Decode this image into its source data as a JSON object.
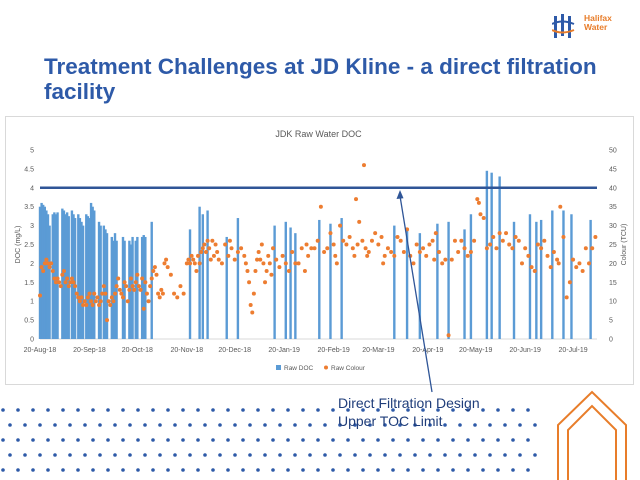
{
  "slide": {
    "title": "Treatment Challenges at JD Kline - a direct filtration facility",
    "callout_line1": "Direct Filtration Design",
    "callout_line2": "Upper TOC Limit"
  },
  "logo": {
    "line1": "Halifax",
    "line2": "Water"
  },
  "colors": {
    "title": "#2e5aa8",
    "bar": "#5b9bd5",
    "dot": "#ed7d31",
    "limit_line": "#2f5597",
    "callout_text": "#1f3d7a",
    "dot_pattern": "#2e5aa8",
    "house_outline": "#e87d2a"
  },
  "chart_data": {
    "type": "bar+scatter",
    "title": "JDK Raw Water DOC",
    "ylabel_left": "DOC (mg/L)",
    "ylabel_right": "Colour (TCU)",
    "ylim_left": [
      0,
      5
    ],
    "ylim_right": [
      0,
      50
    ],
    "yticks_left": [
      "0",
      "0.5",
      "1",
      "1.5",
      "2",
      "2.5",
      "3",
      "3.5",
      "4",
      "4.5",
      "5"
    ],
    "yticks_right": [
      "0",
      "5",
      "10",
      "15",
      "20",
      "25",
      "30",
      "35",
      "40",
      "45",
      "50"
    ],
    "x_tick_labels": [
      "20-Aug-18",
      "20-Sep-18",
      "20-Oct-18",
      "20-Nov-18",
      "20-Dec-18",
      "20-Jan-19",
      "20-Feb-19",
      "20-Mar-19",
      "20-Apr-19",
      "20-May-19",
      "20-Jun-19",
      "20-Jul-19"
    ],
    "x_ticks_day": [
      0,
      31,
      61,
      92,
      122,
      153,
      184,
      212,
      243,
      273,
      304,
      334
    ],
    "x_range_day": [
      0,
      349
    ],
    "legend": [
      "Raw DOC",
      "Raw Colour"
    ],
    "legend_position": "bottom",
    "limit_line": {
      "axis": "left",
      "value": 4.0
    },
    "doc_bars": [
      [
        0,
        3.5
      ],
      [
        1,
        3.6
      ],
      [
        2,
        3.55
      ],
      [
        3,
        3.5
      ],
      [
        4,
        3.4
      ],
      [
        5,
        3.3
      ],
      [
        6,
        3.0
      ],
      [
        8,
        3.3
      ],
      [
        9,
        3.35
      ],
      [
        10,
        3.3
      ],
      [
        11,
        3.35
      ],
      [
        14,
        3.45
      ],
      [
        15,
        3.4
      ],
      [
        16,
        3.3
      ],
      [
        17,
        3.35
      ],
      [
        18,
        3.25
      ],
      [
        20,
        3.4
      ],
      [
        21,
        3.3
      ],
      [
        22,
        3.2
      ],
      [
        24,
        3.3
      ],
      [
        25,
        3.2
      ],
      [
        26,
        3.1
      ],
      [
        27,
        3.0
      ],
      [
        29,
        3.3
      ],
      [
        30,
        3.25
      ],
      [
        31,
        3.2
      ],
      [
        32,
        3.6
      ],
      [
        33,
        3.5
      ],
      [
        34,
        3.4
      ],
      [
        37,
        3.1
      ],
      [
        38,
        3.0
      ],
      [
        40,
        3.0
      ],
      [
        41,
        2.9
      ],
      [
        42,
        2.8
      ],
      [
        45,
        2.7
      ],
      [
        46,
        2.6
      ],
      [
        47,
        2.8
      ],
      [
        48,
        2.6
      ],
      [
        52,
        2.7
      ],
      [
        53,
        2.6
      ],
      [
        56,
        2.6
      ],
      [
        57,
        2.5
      ],
      [
        58,
        2.7
      ],
      [
        60,
        2.6
      ],
      [
        61,
        2.7
      ],
      [
        64,
        2.7
      ],
      [
        65,
        2.75
      ],
      [
        66,
        2.7
      ],
      [
        70,
        3.1
      ],
      [
        94,
        2.9
      ],
      [
        100,
        3.5
      ],
      [
        102,
        3.3
      ],
      [
        105,
        3.4
      ],
      [
        117,
        2.7
      ],
      [
        124,
        3.2
      ],
      [
        147,
        3.0
      ],
      [
        154,
        3.1
      ],
      [
        157,
        2.95
      ],
      [
        160,
        2.8
      ],
      [
        175,
        3.15
      ],
      [
        182,
        3.05
      ],
      [
        189,
        3.2
      ],
      [
        222,
        3.0
      ],
      [
        230,
        2.9
      ],
      [
        238,
        2.8
      ],
      [
        249,
        3.05
      ],
      [
        256,
        3.1
      ],
      [
        266,
        2.9
      ],
      [
        270,
        3.3
      ],
      [
        280,
        4.45
      ],
      [
        283,
        4.4
      ],
      [
        288,
        4.3
      ],
      [
        297,
        3.1
      ],
      [
        307,
        3.3
      ],
      [
        311,
        3.1
      ],
      [
        314,
        3.15
      ],
      [
        321,
        3.4
      ],
      [
        328,
        3.4
      ],
      [
        333,
        3.3
      ],
      [
        345,
        3.15
      ]
    ],
    "colour_points": [
      [
        0,
        11.5
      ],
      [
        1,
        19
      ],
      [
        2,
        18
      ],
      [
        3,
        20
      ],
      [
        4,
        21
      ],
      [
        5,
        20
      ],
      [
        6,
        19
      ],
      [
        7,
        20
      ],
      [
        8,
        18
      ],
      [
        9,
        16
      ],
      [
        10,
        15
      ],
      [
        11,
        16
      ],
      [
        12,
        15
      ],
      [
        13,
        14
      ],
      [
        14,
        17
      ],
      [
        15,
        18
      ],
      [
        16,
        15
      ],
      [
        17,
        16
      ],
      [
        18,
        14
      ],
      [
        19,
        15
      ],
      [
        20,
        16
      ],
      [
        21,
        15
      ],
      [
        22,
        14
      ],
      [
        23,
        12
      ],
      [
        24,
        11
      ],
      [
        25,
        10
      ],
      [
        26,
        11
      ],
      [
        27,
        9
      ],
      [
        28,
        10
      ],
      [
        29,
        9
      ],
      [
        30,
        11
      ],
      [
        31,
        12
      ],
      [
        32,
        10
      ],
      [
        33,
        9
      ],
      [
        34,
        12
      ],
      [
        35,
        10
      ],
      [
        36,
        11
      ],
      [
        37,
        9
      ],
      [
        38,
        10
      ],
      [
        39,
        12
      ],
      [
        40,
        14
      ],
      [
        41,
        12
      ],
      [
        42,
        5
      ],
      [
        43,
        10
      ],
      [
        44,
        9
      ],
      [
        45,
        11
      ],
      [
        46,
        10
      ],
      [
        47,
        12
      ],
      [
        48,
        14
      ],
      [
        49,
        16
      ],
      [
        50,
        13
      ],
      [
        51,
        12
      ],
      [
        52,
        11
      ],
      [
        53,
        15
      ],
      [
        54,
        14
      ],
      [
        55,
        10
      ],
      [
        56,
        13
      ],
      [
        57,
        16
      ],
      [
        58,
        14
      ],
      [
        59,
        13
      ],
      [
        60,
        15
      ],
      [
        61,
        17
      ],
      [
        62,
        14
      ],
      [
        63,
        13
      ],
      [
        64,
        16
      ],
      [
        65,
        8
      ],
      [
        66,
        15
      ],
      [
        67,
        12
      ],
      [
        68,
        10
      ],
      [
        69,
        14
      ],
      [
        70,
        16
      ],
      [
        71,
        18
      ],
      [
        72,
        19
      ],
      [
        73,
        17
      ],
      [
        74,
        12
      ],
      [
        75,
        11
      ],
      [
        76,
        13
      ],
      [
        77,
        12
      ],
      [
        78,
        20
      ],
      [
        79,
        21
      ],
      [
        80,
        19
      ],
      [
        82,
        17
      ],
      [
        84,
        12
      ],
      [
        86,
        11
      ],
      [
        88,
        14
      ],
      [
        90,
        12
      ],
      [
        92,
        20
      ],
      [
        93,
        21
      ],
      [
        94,
        20
      ],
      [
        95,
        22
      ],
      [
        96,
        21
      ],
      [
        97,
        20
      ],
      [
        98,
        18
      ],
      [
        99,
        22
      ],
      [
        100,
        20
      ],
      [
        101,
        23
      ],
      [
        102,
        24
      ],
      [
        103,
        25
      ],
      [
        104,
        23
      ],
      [
        105,
        26
      ],
      [
        106,
        24
      ],
      [
        107,
        21
      ],
      [
        108,
        26
      ],
      [
        109,
        22
      ],
      [
        110,
        25
      ],
      [
        111,
        23
      ],
      [
        112,
        21
      ],
      [
        114,
        20
      ],
      [
        116,
        25
      ],
      [
        118,
        22
      ],
      [
        119,
        26
      ],
      [
        120,
        24
      ],
      [
        122,
        21
      ],
      [
        124,
        23
      ],
      [
        126,
        24
      ],
      [
        128,
        22
      ],
      [
        129,
        20
      ],
      [
        130,
        18
      ],
      [
        131,
        15
      ],
      [
        132,
        9
      ],
      [
        133,
        7
      ],
      [
        134,
        12
      ],
      [
        135,
        18
      ],
      [
        136,
        21
      ],
      [
        137,
        23
      ],
      [
        138,
        21
      ],
      [
        139,
        25
      ],
      [
        140,
        20
      ],
      [
        141,
        15
      ],
      [
        142,
        18
      ],
      [
        143,
        22
      ],
      [
        144,
        20
      ],
      [
        145,
        17
      ],
      [
        146,
        24
      ],
      [
        148,
        21
      ],
      [
        150,
        19
      ],
      [
        152,
        22
      ],
      [
        154,
        20
      ],
      [
        156,
        18
      ],
      [
        158,
        23
      ],
      [
        160,
        20
      ],
      [
        162,
        20
      ],
      [
        164,
        24
      ],
      [
        166,
        18
      ],
      [
        167,
        25
      ],
      [
        168,
        22
      ],
      [
        170,
        24
      ],
      [
        172,
        24
      ],
      [
        174,
        26
      ],
      [
        176,
        35
      ],
      [
        178,
        23
      ],
      [
        180,
        24
      ],
      [
        182,
        28
      ],
      [
        184,
        25
      ],
      [
        185,
        22
      ],
      [
        186,
        20
      ],
      [
        188,
        30
      ],
      [
        190,
        26
      ],
      [
        192,
        25
      ],
      [
        194,
        27
      ],
      [
        196,
        24
      ],
      [
        197,
        22
      ],
      [
        198,
        37
      ],
      [
        199,
        25
      ],
      [
        200,
        31
      ],
      [
        202,
        26
      ],
      [
        203,
        46
      ],
      [
        204,
        24
      ],
      [
        205,
        22
      ],
      [
        206,
        23
      ],
      [
        208,
        26
      ],
      [
        210,
        28
      ],
      [
        212,
        25
      ],
      [
        214,
        27
      ],
      [
        215,
        20
      ],
      [
        216,
        22
      ],
      [
        218,
        24
      ],
      [
        220,
        23
      ],
      [
        222,
        22
      ],
      [
        224,
        27
      ],
      [
        226,
        26
      ],
      [
        228,
        23
      ],
      [
        230,
        29
      ],
      [
        232,
        22
      ],
      [
        234,
        20
      ],
      [
        236,
        25
      ],
      [
        238,
        23
      ],
      [
        240,
        24
      ],
      [
        242,
        22
      ],
      [
        244,
        25
      ],
      [
        246,
        26
      ],
      [
        247,
        21
      ],
      [
        248,
        28
      ],
      [
        250,
        23
      ],
      [
        252,
        20
      ],
      [
        254,
        21
      ],
      [
        256,
        1
      ],
      [
        258,
        21
      ],
      [
        260,
        26
      ],
      [
        262,
        23
      ],
      [
        264,
        26
      ],
      [
        266,
        24
      ],
      [
        268,
        22
      ],
      [
        270,
        23
      ],
      [
        272,
        26
      ],
      [
        274,
        37
      ],
      [
        275,
        36
      ],
      [
        276,
        33
      ],
      [
        278,
        32
      ],
      [
        280,
        24
      ],
      [
        282,
        25
      ],
      [
        284,
        27
      ],
      [
        286,
        24
      ],
      [
        288,
        28
      ],
      [
        290,
        26
      ],
      [
        292,
        28
      ],
      [
        294,
        25
      ],
      [
        296,
        24
      ],
      [
        298,
        27
      ],
      [
        300,
        26
      ],
      [
        302,
        20
      ],
      [
        304,
        24
      ],
      [
        306,
        22
      ],
      [
        308,
        19
      ],
      [
        310,
        18
      ],
      [
        312,
        25
      ],
      [
        314,
        24
      ],
      [
        316,
        26
      ],
      [
        318,
        22
      ],
      [
        320,
        19
      ],
      [
        322,
        23
      ],
      [
        324,
        21
      ],
      [
        325,
        20
      ],
      [
        326,
        35
      ],
      [
        328,
        27
      ],
      [
        330,
        11
      ],
      [
        332,
        15
      ],
      [
        334,
        21
      ],
      [
        336,
        19
      ],
      [
        338,
        20
      ],
      [
        340,
        18
      ],
      [
        342,
        24
      ],
      [
        344,
        20
      ],
      [
        346,
        24
      ],
      [
        348,
        27
      ]
    ]
  }
}
